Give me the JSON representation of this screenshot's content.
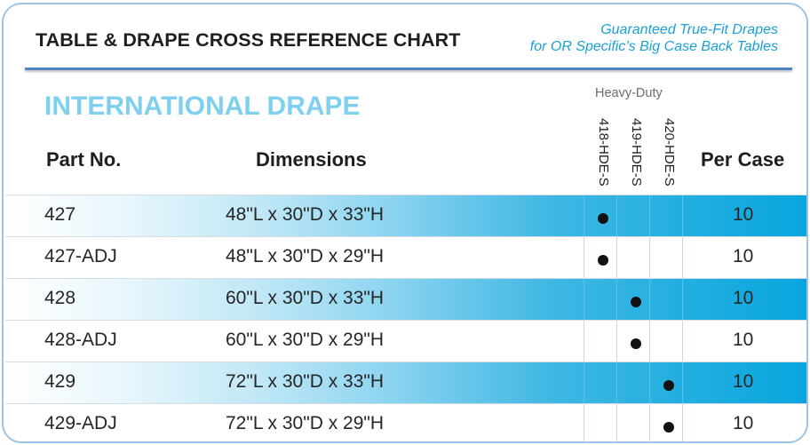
{
  "header": {
    "title": "TABLE & DRAPE CROSS REFERENCE CHART",
    "tagline_line1": "Guaranteed True-Fit Drapes",
    "tagline_line2": "for OR Specific’s Big Case Back Tables"
  },
  "section": {
    "title": "INTERNATIONAL DRAPE",
    "drape_group": "Heavy-Duty"
  },
  "columns": {
    "part": "Part No.",
    "dimensions": "Dimensions",
    "per_case": "Per Case",
    "drapes": [
      "418-HDE-S",
      "419-HDE-S",
      "420-HDE-S"
    ]
  },
  "rows": [
    {
      "part": "427",
      "dimensions": "48\"L x 30\"D x 33\"H",
      "drape": "418-HDE-S",
      "per_case": "10"
    },
    {
      "part": "427-ADJ",
      "dimensions": "48\"L x 30\"D x 29\"H",
      "drape": "418-HDE-S",
      "per_case": "10"
    },
    {
      "part": "428",
      "dimensions": "60\"L x 30\"D x 33\"H",
      "drape": "419-HDE-S",
      "per_case": "10"
    },
    {
      "part": "428-ADJ",
      "dimensions": "60\"L x 30\"D x 29\"H",
      "drape": "419-HDE-S",
      "per_case": "10"
    },
    {
      "part": "429",
      "dimensions": "72\"L x 30\"D x 33\"H",
      "drape": "420-HDE-S",
      "per_case": "10"
    },
    {
      "part": "429-ADJ",
      "dimensions": "72\"L x 30\"D x 29\"H",
      "drape": "420-HDE-S",
      "per_case": "10"
    }
  ],
  "colors": {
    "accent_blue": "#08a6dd",
    "section_blue": "#7fd0ee",
    "border_blue": "#9fc3e4",
    "rule_blue": "#4d84c4"
  }
}
